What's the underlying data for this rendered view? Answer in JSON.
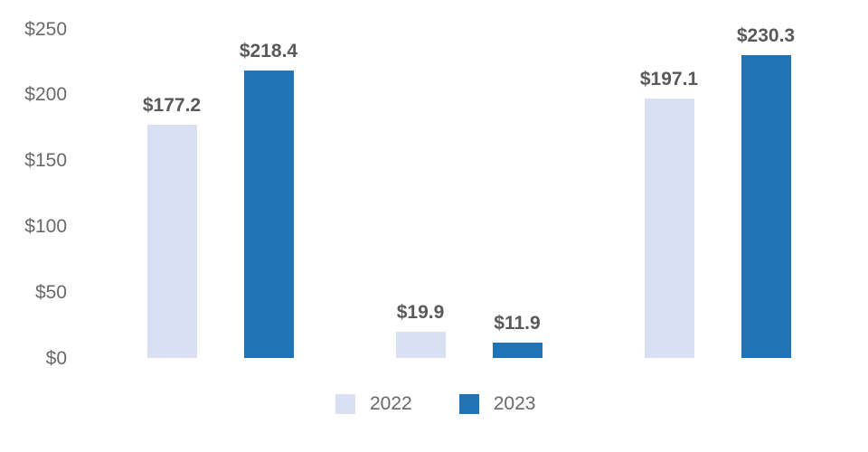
{
  "chart": {
    "background_color": "#FFFFFF"
  },
  "chart_data": {
    "type": "bar",
    "title": "",
    "xlabel": "",
    "ylabel": "",
    "categories": [
      "",
      "",
      ""
    ],
    "series": [
      {
        "name": "2022",
        "color": "#D9E0F1",
        "values": [
          177.2,
          19.9,
          197.1
        ],
        "value_labels": [
          "$177.2",
          "$19.9",
          "$197.1"
        ]
      },
      {
        "name": "2023",
        "color": "#2173B7",
        "values": [
          218.4,
          11.9,
          230.3
        ],
        "value_labels": [
          "$218.4",
          "$11.9",
          "$230.3"
        ]
      }
    ],
    "y_axis": {
      "ylim": [
        0,
        250
      ],
      "grid": false,
      "ticks": [
        {
          "value": 0,
          "label": "$0"
        },
        {
          "value": 50,
          "label": "$50"
        },
        {
          "value": 100,
          "label": "$100"
        },
        {
          "value": 150,
          "label": "$150"
        },
        {
          "value": 200,
          "label": "$200"
        },
        {
          "value": 250,
          "label": "$250"
        }
      ]
    },
    "legend": {
      "position": "bottom",
      "entries": [
        "2022",
        "2023"
      ]
    },
    "style": {
      "value_label_color": "#58595B",
      "axis_label_color": "#696969"
    }
  }
}
